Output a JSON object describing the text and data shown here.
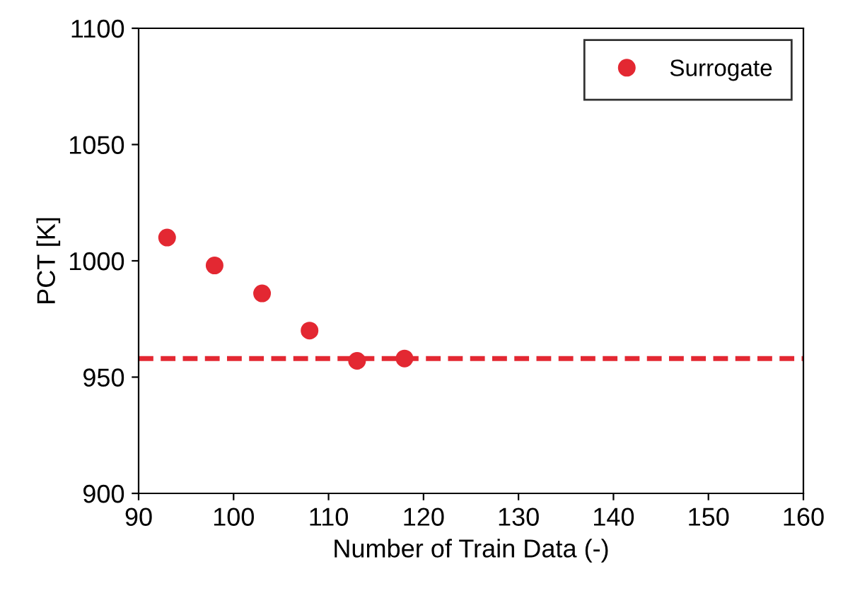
{
  "chart_data": {
    "type": "scatter",
    "xlabel": "Number of Train Data (-)",
    "ylabel": "PCT [K]",
    "x": [
      93,
      98,
      103,
      108,
      113,
      118
    ],
    "series": [
      {
        "name": "Surrogate",
        "color": "#e32832",
        "values": [
          1010,
          998,
          986,
          970,
          957,
          958
        ]
      }
    ],
    "ref_lines": [
      {
        "axis": "y",
        "value": 958,
        "color": "#e32832",
        "line_style": "dashed"
      }
    ],
    "xlim": [
      90,
      160
    ],
    "xticks": [
      90,
      100,
      110,
      120,
      130,
      140,
      150,
      160
    ],
    "ylim": [
      900,
      1100
    ],
    "yticks": [
      900,
      950,
      1000,
      1050,
      1100
    ],
    "marker": "circle",
    "legend": "top right",
    "grid": false
  }
}
